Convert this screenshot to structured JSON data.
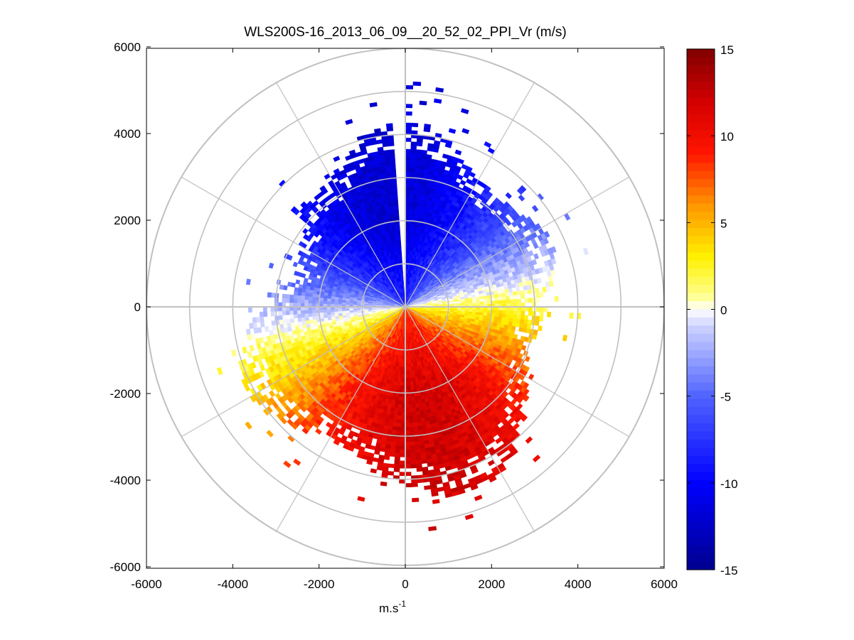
{
  "chart_data": {
    "type": "heatmap",
    "subtype": "polar PPI radial velocity",
    "title": "WLS200S-16_2013_06_09__20_52_02_PPI_Vr (m/s)",
    "xlabel": "m.s",
    "xlabel_superscript": "-1",
    "ylabel": "",
    "xlim": [
      -6000,
      6000
    ],
    "ylim": [
      -6000,
      6000
    ],
    "x_ticks": [
      "-6000",
      "-4000",
      "-2000",
      "0",
      "2000",
      "4000",
      "6000"
    ],
    "y_ticks": [
      "6000",
      "4000",
      "2000",
      "0",
      "-2000",
      "-4000",
      "-6000"
    ],
    "x_tick_values": [
      -6000,
      -4000,
      -2000,
      0,
      2000,
      4000,
      6000
    ],
    "y_tick_values": [
      6000,
      4000,
      2000,
      0,
      -2000,
      -4000,
      -6000
    ],
    "range_rings_m": [
      1000,
      2000,
      3000,
      4000,
      5000,
      6000
    ],
    "spokes_deg": [
      0,
      30,
      60,
      90,
      120,
      150,
      180,
      210,
      240,
      270,
      300,
      330
    ],
    "colorbar": {
      "min": -15,
      "max": 15,
      "ticks": [
        "15",
        "10",
        "5",
        "0",
        "-5",
        "-10",
        "-15"
      ],
      "tick_values": [
        15,
        10,
        5,
        0,
        -5,
        -10,
        -15
      ],
      "colormap": "blue-white-yellow-red"
    },
    "field_description_values": {
      "north_sector_vr": -12,
      "south_sector_vr": 12,
      "zero_line_axis_deg_from_east": 10
    },
    "colors": {
      "dark_blue": "#00008f",
      "blue": "#0000ff",
      "white": "#ffffff",
      "yellow": "#ffff00",
      "orange": "#ff8000",
      "red": "#ff0000",
      "dark_red": "#800000",
      "grid": "#c0c0c0"
    }
  }
}
